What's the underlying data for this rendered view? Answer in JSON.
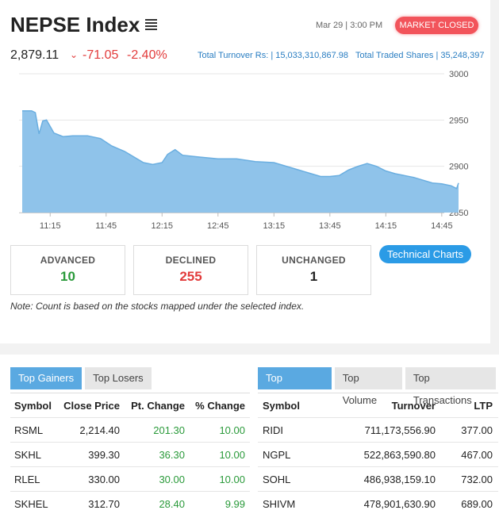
{
  "header": {
    "title": "NEPSE Index",
    "datetime": "Mar 29 | 3:00 PM",
    "market_status": "MARKET CLOSED",
    "index_value": "2,879.11",
    "change_point": "-71.05",
    "change_percent": "-2.40%",
    "change_icon": "chevron-down-icon",
    "turnover": "Total Turnover Rs: | 15,033,310,867.98",
    "traded_shares": "Total Traded Shares | 35,248,397"
  },
  "chart_data": {
    "type": "area",
    "x_ticks": [
      "11:15",
      "11:45",
      "12:15",
      "12:45",
      "13:15",
      "13:45",
      "14:15",
      "14:45"
    ],
    "y_ticks": [
      "3000",
      "2950",
      "2900",
      "2850"
    ],
    "ylim": [
      2850,
      3000
    ],
    "fill_color": "#8fc3ea",
    "line_color": "#6aaee0",
    "series": [
      {
        "x": [
          "11:00",
          "11:05",
          "11:07",
          "11:09",
          "11:11",
          "11:13",
          "11:17",
          "11:22",
          "11:27",
          "11:35",
          "11:42",
          "11:48",
          "11:55",
          "12:00",
          "12:05",
          "12:10",
          "12:15",
          "12:18",
          "12:22",
          "12:26",
          "12:30",
          "12:35",
          "12:45",
          "12:55",
          "13:05",
          "13:15",
          "13:25",
          "13:35",
          "13:40",
          "13:45",
          "13:50",
          "13:55",
          "14:00",
          "14:05",
          "14:10",
          "14:15",
          "14:20",
          "14:25",
          "14:30",
          "14:35",
          "14:40",
          "14:45",
          "14:50",
          "14:53",
          "14:54"
        ],
        "values": [
          2960,
          2960,
          2958,
          2935,
          2949,
          2950,
          2936,
          2932,
          2933,
          2933,
          2930,
          2922,
          2916,
          2910,
          2904,
          2902,
          2904,
          2913,
          2918,
          2912,
          2911,
          2910,
          2908,
          2908,
          2905,
          2904,
          2898,
          2892,
          2889,
          2889,
          2890,
          2896,
          2900,
          2903,
          2900,
          2895,
          2892,
          2890,
          2888,
          2885,
          2882,
          2881,
          2879,
          2876,
          2882
        ]
      }
    ]
  },
  "stats": {
    "advanced_label": "ADVANCED",
    "advanced": "10",
    "declined_label": "DECLINED",
    "declined": "255",
    "unchanged_label": "UNCHANGED",
    "unchanged": "1",
    "colors": {
      "advanced": "#2a9a3a",
      "declined": "#e23b3b",
      "unchanged": "#222222"
    }
  },
  "technical_charts_label": "Technical Charts",
  "note": "Note: Count is based on the stocks mapped under the selected index.",
  "gainers": {
    "tabs": [
      "Top Gainers",
      "Top Losers"
    ],
    "headers": [
      "Symbol",
      "Close Price",
      "Pt. Change",
      "% Change"
    ],
    "rows": [
      [
        "RSML",
        "2,214.40",
        "201.30",
        "10.00"
      ],
      [
        "SKHL",
        "399.30",
        "36.30",
        "10.00"
      ],
      [
        "RLEL",
        "330.00",
        "30.00",
        "10.00"
      ],
      [
        "SKHEL",
        "312.70",
        "28.40",
        "9.99"
      ]
    ]
  },
  "turnover": {
    "tabs": [
      "Top Turnover",
      "Top Volume",
      "Top Transactions"
    ],
    "headers": [
      "Symbol",
      "Turnover",
      "LTP"
    ],
    "rows": [
      [
        "RIDI",
        "711,173,556.90",
        "377.00"
      ],
      [
        "NGPL",
        "522,863,590.80",
        "467.00"
      ],
      [
        "SOHL",
        "486,938,159.10",
        "732.00"
      ],
      [
        "SHIVM",
        "478,901,630.90",
        "689.00"
      ]
    ]
  }
}
